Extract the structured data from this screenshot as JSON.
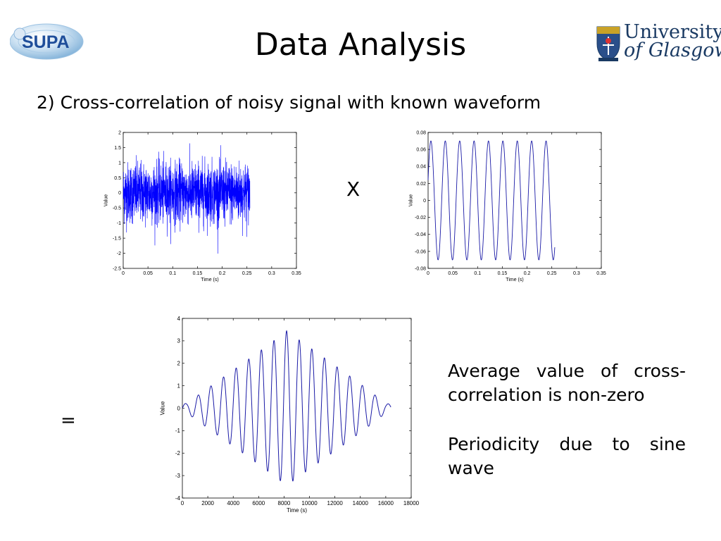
{
  "slide": {
    "title": "Data Analysis",
    "subtitle": "2) Cross-correlation of noisy signal with known waveform",
    "times_operator": "X",
    "equals_operator": "=",
    "notes": [
      "Average value of cross-correlation is non-zero",
      "Periodicity due to sine wave"
    ]
  },
  "logos": {
    "left": {
      "text": "SUPA",
      "color": "#1f4e9a"
    },
    "right": {
      "line1": "University",
      "line2": "of Glasgow",
      "color": "#1a3a63"
    }
  },
  "colors": {
    "signal": "#0000ff",
    "waveform": "#1a1aa6",
    "correlation": "#1a1aa6"
  },
  "chart_data": [
    {
      "id": "noisy-signal",
      "type": "line",
      "xlabel": "Time (s)",
      "ylabel": "Value",
      "xlim": [
        0,
        0.35
      ],
      "ylim": [
        -2.5,
        2
      ],
      "xticks": [
        0,
        0.05,
        0.1,
        0.15,
        0.2,
        0.25,
        0.3,
        0.35
      ],
      "yticks": [
        -2.5,
        -2,
        -1.5,
        -1,
        -0.5,
        0,
        0.5,
        1,
        1.5,
        2
      ],
      "series": [
        {
          "description": "dense random noise",
          "x_range": [
            0,
            0.256
          ],
          "amplitude_std": 0.5,
          "peak_range": [
            -2.1,
            1.8
          ]
        }
      ]
    },
    {
      "id": "known-waveform",
      "type": "line",
      "xlabel": "Time (s)",
      "ylabel": "Value",
      "xlim": [
        0,
        0.35
      ],
      "ylim": [
        -0.08,
        0.08
      ],
      "xticks": [
        0,
        0.05,
        0.1,
        0.15,
        0.2,
        0.25,
        0.3,
        0.35
      ],
      "yticks": [
        -0.08,
        -0.06,
        -0.04,
        -0.02,
        0,
        0.02,
        0.04,
        0.06,
        0.08
      ],
      "series": [
        {
          "description": "sine wave",
          "amplitude": 0.07,
          "cycles": 8.8,
          "x_range": [
            0,
            0.256
          ]
        }
      ]
    },
    {
      "id": "cross-correlation",
      "type": "line",
      "xlabel": "Time (s)",
      "ylabel": "Value",
      "xlim": [
        0,
        18000
      ],
      "ylim": [
        -4,
        4
      ],
      "xticks": [
        0,
        2000,
        4000,
        6000,
        8000,
        10000,
        12000,
        14000,
        16000,
        18000
      ],
      "yticks": [
        -4,
        -3,
        -2,
        -1,
        0,
        1,
        2,
        3,
        4
      ],
      "series": [
        {
          "description": "triangular-envelope oscillation",
          "peak": 3.5,
          "peak_x": 8200,
          "x_range": [
            0,
            16400
          ],
          "cycles": 16.5
        }
      ]
    }
  ]
}
